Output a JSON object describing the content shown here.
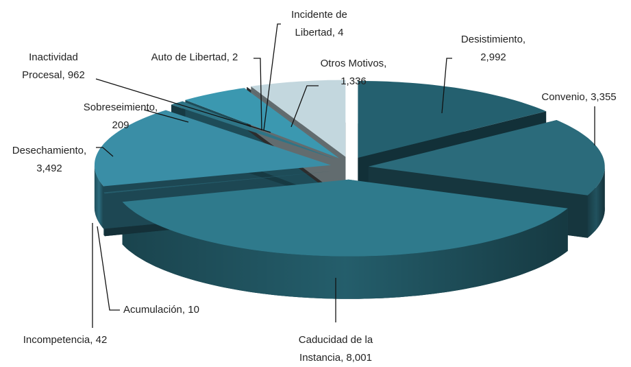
{
  "chart_data": {
    "type": "pie3d",
    "categories": [
      "Desistimiento",
      "Convenio",
      "Caducidad de la Instancia",
      "Acumulación",
      "Incompetencia",
      "Desechamiento",
      "Sobreseimiento",
      "Inactividad Procesal",
      "Auto de Libertad",
      "Incidente de Libertad",
      "Otros Motivos"
    ],
    "values": [
      2992,
      3355,
      8001,
      10,
      42,
      3492,
      209,
      962,
      2,
      4,
      1336
    ],
    "value_labels": [
      "2,992",
      "3,355",
      "8,001",
      "10",
      "42",
      "3,492",
      "209",
      "962",
      "2",
      "4",
      "1,336"
    ],
    "colors": [
      "#24606f",
      "#2b6b7b",
      "#2f7a8c",
      "#2a6676",
      "#27606f",
      "#3a8ea6",
      "#2e7486",
      "#3b98b0",
      "#2f7080",
      "#5a5a5a",
      "#c3d7de"
    ]
  }
}
